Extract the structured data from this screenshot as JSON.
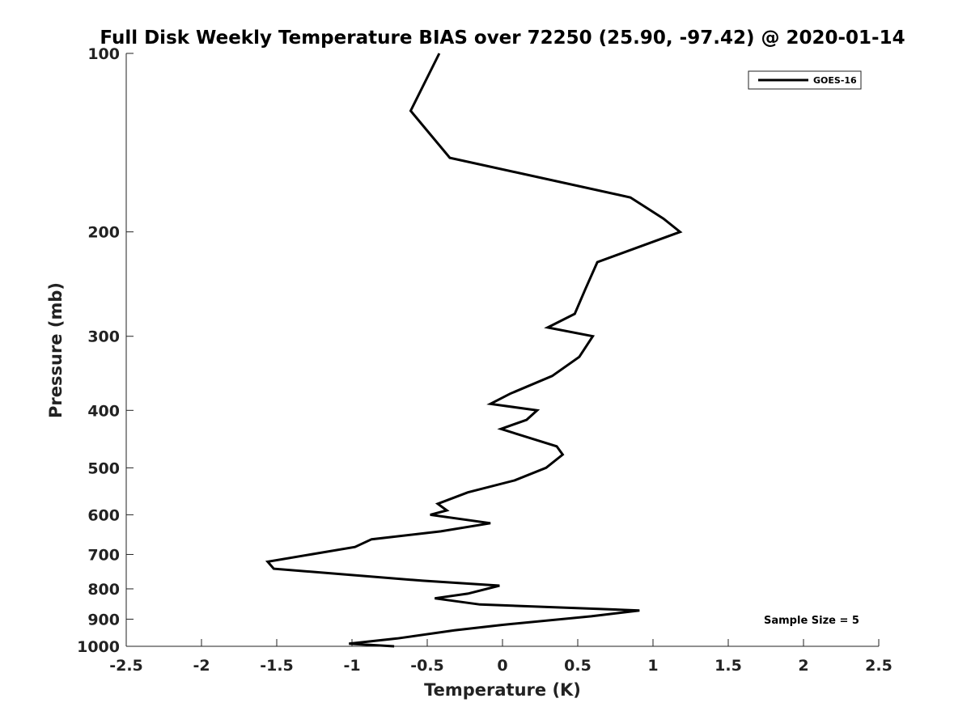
{
  "chart_data": {
    "type": "line",
    "title": "Full Disk Weekly Temperature BIAS over 72250 (25.90, -97.42) @ 2020-01-14",
    "xlabel": "Temperature (K)",
    "ylabel": "Pressure (mb)",
    "xlim": [
      -2.5,
      2.5
    ],
    "ylim": [
      100,
      1000
    ],
    "y_scale": "log",
    "y_reversed": true,
    "grid": false,
    "legend_position": "top-right",
    "x_ticks": [
      -2.5,
      -2,
      -1.5,
      -1,
      -0.5,
      0,
      0.5,
      1,
      1.5,
      2,
      2.5
    ],
    "x_tick_labels": [
      "-2.5",
      "-2",
      "-1.5",
      "-1",
      "-0.5",
      "0",
      "0.5",
      "1",
      "1.5",
      "2",
      "2.5"
    ],
    "y_ticks": [
      100,
      200,
      300,
      400,
      500,
      600,
      700,
      800,
      900,
      1000
    ],
    "y_tick_labels": [
      "100",
      "200",
      "300",
      "400",
      "500",
      "600",
      "700",
      "800",
      "900",
      "1000"
    ],
    "series": [
      {
        "name": "GOES-16",
        "color": "#000000",
        "points": [
          [
            -0.42,
            100
          ],
          [
            -0.61,
            125
          ],
          [
            -0.35,
            150
          ],
          [
            0.85,
            175
          ],
          [
            1.07,
            190
          ],
          [
            1.18,
            200
          ],
          [
            0.63,
            225
          ],
          [
            0.55,
            250
          ],
          [
            0.48,
            275
          ],
          [
            0.3,
            290
          ],
          [
            0.6,
            300
          ],
          [
            0.51,
            325
          ],
          [
            0.33,
            350
          ],
          [
            0.05,
            375
          ],
          [
            -0.08,
            390
          ],
          [
            0.23,
            400
          ],
          [
            0.16,
            415
          ],
          [
            -0.01,
            430
          ],
          [
            0.36,
            460
          ],
          [
            0.4,
            475
          ],
          [
            0.29,
            500
          ],
          [
            0.08,
            525
          ],
          [
            -0.23,
            550
          ],
          [
            -0.43,
            575
          ],
          [
            -0.37,
            590
          ],
          [
            -0.48,
            600
          ],
          [
            -0.08,
            620
          ],
          [
            -0.41,
            640
          ],
          [
            -0.87,
            660
          ],
          [
            -0.98,
            680
          ],
          [
            -1.56,
            720
          ],
          [
            -1.52,
            740
          ],
          [
            -0.53,
            775
          ],
          [
            -0.02,
            790
          ],
          [
            -0.23,
            815
          ],
          [
            -0.45,
            830
          ],
          [
            -0.15,
            850
          ],
          [
            0.91,
            870
          ],
          [
            0.59,
            890
          ],
          [
            0.0,
            920
          ],
          [
            -0.32,
            940
          ],
          [
            -0.7,
            970
          ],
          [
            -1.02,
            990
          ],
          [
            -0.72,
            1000
          ]
        ]
      }
    ],
    "annotations": [
      "Sample Size = 5"
    ]
  }
}
